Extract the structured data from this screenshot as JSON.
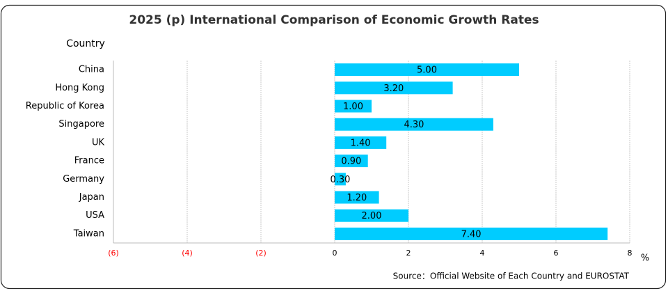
{
  "chart_data": {
    "type": "hbar",
    "title": "2025 (p) International Comparison of Economic Growth Rates",
    "y_label": "Country",
    "x_label": "%",
    "source": "Source：Official Website of Each Country and EUROSTAT",
    "categories": [
      "China",
      "Hong Kong",
      "Republic of Korea",
      "Singapore",
      "UK",
      "France",
      "Germany",
      "Japan",
      "USA",
      "Taiwan"
    ],
    "values": [
      5.0,
      3.2,
      1.0,
      4.3,
      1.4,
      0.9,
      0.3,
      1.2,
      2.0,
      7.4
    ],
    "value_labels": [
      "5.00",
      "3.20",
      "1.00",
      "4.30",
      "1.40",
      "0.90",
      "0.30",
      "1.20",
      "2.00",
      "7.40"
    ],
    "color": "#00ccff",
    "xlim": [
      -6,
      8
    ],
    "xticks": [
      {
        "value": -6,
        "label": "(6)"
      },
      {
        "value": -4,
        "label": "(4)"
      },
      {
        "value": -2,
        "label": "(2)"
      },
      0,
      2,
      4,
      6,
      8
    ],
    "negative_tick_color": "#ff0000",
    "grid": true
  }
}
